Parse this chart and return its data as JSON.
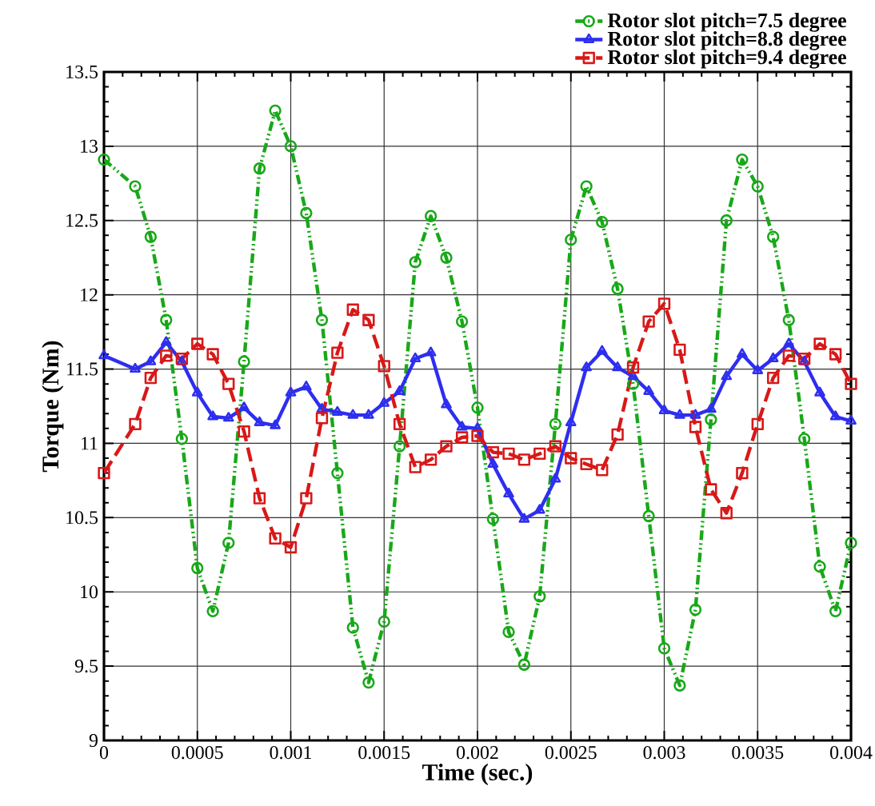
{
  "chart_data": {
    "type": "line",
    "xlabel": "Time (sec.)",
    "ylabel": "Torque (Nm)",
    "xlim": [
      0,
      0.004
    ],
    "ylim": [
      9,
      13.5
    ],
    "xticks": [
      0,
      0.0005,
      0.001,
      0.0015,
      0.002,
      0.0025,
      0.003,
      0.0035,
      0.004
    ],
    "yticks": [
      9,
      9.5,
      10,
      10.5,
      11,
      11.5,
      12,
      12.5,
      13,
      13.5
    ],
    "grid": true,
    "legend": "top right",
    "series": [
      {
        "name": "Rotor slot pitch=7.5 degree",
        "color": "#18a818",
        "marker": "circle",
        "line_style": "dotted",
        "x": [
          0,
          0.000167,
          0.00025,
          0.000333,
          0.000417,
          0.0005,
          0.000583,
          0.000667,
          0.00075,
          0.000833,
          0.000917,
          0.001,
          0.001083,
          0.001167,
          0.00125,
          0.001333,
          0.001417,
          0.0015,
          0.001583,
          0.001667,
          0.00175,
          0.001833,
          0.001917,
          0.002,
          0.002083,
          0.002167,
          0.00225,
          0.002333,
          0.002417,
          0.0025,
          0.002583,
          0.002667,
          0.00275,
          0.002833,
          0.002917,
          0.003,
          0.003083,
          0.003167,
          0.00325,
          0.003333,
          0.003417,
          0.0035,
          0.003583,
          0.003667,
          0.00375,
          0.003833,
          0.003917,
          0.004
        ],
        "values": [
          12.91,
          12.73,
          12.39,
          11.83,
          11.03,
          10.16,
          9.87,
          10.33,
          11.55,
          12.85,
          13.24,
          13.0,
          12.55,
          11.83,
          10.8,
          9.76,
          9.39,
          9.8,
          10.98,
          12.22,
          12.53,
          12.25,
          11.82,
          11.24,
          10.49,
          9.73,
          9.51,
          9.97,
          11.13,
          12.37,
          12.73,
          12.49,
          12.04,
          11.4,
          10.51,
          9.62,
          9.37,
          9.88,
          11.16,
          12.5,
          12.91,
          12.73,
          12.39,
          11.83,
          11.03,
          10.17,
          9.87,
          10.33
        ]
      },
      {
        "name": "Rotor slot pitch=8.8 degree",
        "color": "#2e2ef0",
        "marker": "triangle",
        "line_style": "solid",
        "x": [
          0,
          0.000167,
          0.00025,
          0.000333,
          0.000417,
          0.0005,
          0.000583,
          0.000667,
          0.00075,
          0.000833,
          0.000917,
          0.001,
          0.001083,
          0.001167,
          0.00125,
          0.001333,
          0.001417,
          0.0015,
          0.001583,
          0.001667,
          0.00175,
          0.001833,
          0.001917,
          0.002,
          0.002083,
          0.002167,
          0.00225,
          0.002333,
          0.002417,
          0.0025,
          0.002583,
          0.002667,
          0.00275,
          0.002833,
          0.002917,
          0.003,
          0.003083,
          0.003167,
          0.00325,
          0.003333,
          0.003417,
          0.0035,
          0.003583,
          0.003667,
          0.00375,
          0.003833,
          0.003917,
          0.004
        ],
        "values": [
          11.59,
          11.5,
          11.55,
          11.68,
          11.55,
          11.34,
          11.18,
          11.17,
          11.24,
          11.14,
          11.12,
          11.34,
          11.38,
          11.23,
          11.21,
          11.19,
          11.19,
          11.27,
          11.35,
          11.57,
          11.61,
          11.26,
          11.11,
          11.1,
          10.86,
          10.66,
          10.49,
          10.55,
          10.76,
          11.14,
          11.51,
          11.62,
          11.51,
          11.45,
          11.35,
          11.22,
          11.19,
          11.19,
          11.23,
          11.45,
          11.6,
          11.49,
          11.57,
          11.67,
          11.55,
          11.34,
          11.18,
          11.15
        ]
      },
      {
        "name": "Rotor slot pitch=9.4 degree",
        "color": "#d81818",
        "marker": "square",
        "line_style": "dashed",
        "x": [
          0,
          0.000167,
          0.00025,
          0.000333,
          0.000417,
          0.0005,
          0.000583,
          0.000667,
          0.00075,
          0.000833,
          0.000917,
          0.001,
          0.001083,
          0.001167,
          0.00125,
          0.001333,
          0.001417,
          0.0015,
          0.001583,
          0.001667,
          0.00175,
          0.001833,
          0.001917,
          0.002,
          0.002083,
          0.002167,
          0.00225,
          0.002333,
          0.002417,
          0.0025,
          0.002583,
          0.002667,
          0.00275,
          0.002833,
          0.002917,
          0.003,
          0.003083,
          0.003167,
          0.00325,
          0.003333,
          0.003417,
          0.0035,
          0.003583,
          0.003667,
          0.00375,
          0.003833,
          0.003917,
          0.004
        ],
        "values": [
          10.8,
          11.13,
          11.44,
          11.59,
          11.57,
          11.67,
          11.6,
          11.4,
          11.08,
          10.63,
          10.36,
          10.3,
          10.63,
          11.17,
          11.61,
          11.9,
          11.83,
          11.52,
          11.13,
          10.84,
          10.89,
          10.98,
          11.04,
          11.05,
          10.94,
          10.93,
          10.89,
          10.93,
          10.98,
          10.9,
          10.86,
          10.82,
          11.06,
          11.51,
          11.82,
          11.94,
          11.63,
          11.11,
          10.69,
          10.53,
          10.8,
          11.13,
          11.44,
          11.59,
          11.57,
          11.67,
          11.6,
          11.4
        ]
      }
    ]
  }
}
